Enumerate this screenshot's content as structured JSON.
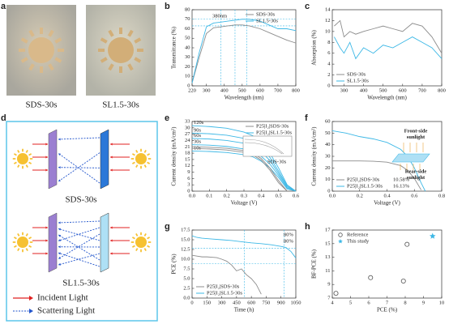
{
  "photos": {
    "panel": "a",
    "labels": [
      "SDS-30s",
      "SL1.5-30s"
    ]
  },
  "diagram": {
    "panel": "d",
    "labels": [
      "SDS-30s",
      "SL1.5-30s"
    ],
    "legend": [
      "Incident Light",
      "Scattering Light"
    ]
  },
  "chart_data": [
    {
      "type": "line",
      "panel": "b",
      "xlabel": "Wavelength (nm)",
      "ylabel": "Transmittance (%)",
      "xlim": [
        220,
        800
      ],
      "xticks": [
        220,
        300,
        400,
        500,
        600,
        700,
        800
      ],
      "ylim": [
        0,
        80
      ],
      "yticks": [
        0,
        10,
        20,
        30,
        40,
        50,
        60,
        70,
        80
      ],
      "legend": "upper right",
      "annotations": [
        "380nm"
      ],
      "vlines": [
        380,
        460,
        525
      ],
      "hlines": [
        63,
        70
      ],
      "ref_color": "#3db8e6",
      "series": [
        {
          "name": "SDS-30s",
          "color": "#8c8c8c",
          "x": [
            220,
            260,
            300,
            340,
            380,
            420,
            460,
            500,
            540,
            600,
            650,
            700,
            750,
            800
          ],
          "values": [
            3,
            30,
            55,
            61,
            62,
            63,
            64,
            64,
            63,
            60,
            56,
            52,
            48,
            45
          ]
        },
        {
          "name": "SL1.5-30s",
          "color": "#3db8e6",
          "x": [
            220,
            260,
            300,
            340,
            380,
            420,
            460,
            500,
            540,
            600,
            650,
            700,
            750,
            800
          ],
          "values": [
            3,
            35,
            62,
            66,
            67,
            68,
            69,
            70,
            70,
            68,
            64,
            60,
            60,
            58
          ]
        }
      ]
    },
    {
      "type": "line",
      "panel": "c",
      "xlabel": "Wavelength (nm)",
      "ylabel": "Absorption (%)",
      "xlim": [
        240,
        800
      ],
      "xticks": [
        300,
        400,
        500,
        600,
        700,
        800
      ],
      "ylim": [
        0,
        14
      ],
      "yticks": [
        0,
        2,
        4,
        6,
        8,
        10,
        12,
        14
      ],
      "legend": "lower left",
      "series": [
        {
          "name": "SDS-30s",
          "color": "#8c8c8c",
          "x": [
            250,
            280,
            300,
            330,
            360,
            400,
            450,
            500,
            550,
            600,
            650,
            700,
            750,
            800
          ],
          "values": [
            11,
            12,
            9,
            10,
            9.5,
            10,
            10.5,
            11,
            10.5,
            10,
            11.5,
            11,
            9,
            6
          ]
        },
        {
          "name": "SL1.5-30s",
          "color": "#3db8e6",
          "x": [
            250,
            280,
            300,
            330,
            360,
            400,
            450,
            500,
            550,
            600,
            650,
            700,
            750,
            800
          ],
          "values": [
            9,
            7,
            6,
            8,
            5,
            7,
            6,
            7.5,
            7,
            8,
            9,
            8,
            7,
            5
          ]
        }
      ]
    },
    {
      "type": "line",
      "panel": "e",
      "xlabel": "Voltage (V)",
      "ylabel": "Current density (mA/cm²)",
      "xlim": [
        0,
        0.6
      ],
      "xticks": [
        {
          "value": 0,
          "label": "0.0"
        },
        0.1,
        0.2,
        0.3,
        0.4,
        0.5,
        0.6
      ],
      "ylim": [
        0,
        33
      ],
      "yticks": [
        0,
        3,
        6,
        9,
        12,
        15,
        18,
        21,
        24,
        27,
        30,
        33
      ],
      "legend": "upper right",
      "label_curves": true,
      "annotations": [
        "SDS-30s"
      ],
      "legend_entries": [
        {
          "label": "P25|I₂|SDS-30s",
          "color": "#8c8c8c"
        },
        {
          "label": "P25|I₂|SL1.5-30s",
          "color": "#3db8e6"
        }
      ],
      "x": [
        0,
        0.1,
        0.2,
        0.3,
        0.35,
        0.4,
        0.45,
        0.5,
        0.55,
        0.6
      ],
      "series": [
        {
          "name": "120s",
          "color": "#3db8e6",
          "values": [
            31,
            30.6,
            29.8,
            28,
            26.3,
            23,
            18,
            11,
            3,
            0
          ]
        },
        {
          "name": "90s",
          "color": "#3db8e6",
          "values": [
            27.5,
            27.2,
            26.5,
            25,
            23.5,
            20.5,
            16,
            9.5,
            2.5,
            0
          ]
        },
        {
          "name": "60s",
          "color": "#3db8e6",
          "values": [
            25,
            24.7,
            24,
            22.7,
            21.3,
            18.7,
            14.5,
            8.5,
            2,
            0
          ]
        },
        {
          "name": "30s",
          "color": "#3db8e6",
          "values": [
            22,
            21.8,
            21.2,
            20,
            18.8,
            16.5,
            12.8,
            7.5,
            1.5,
            0
          ]
        },
        {
          "name": "10s",
          "color": "#3db8e6",
          "values": [
            19,
            18.8,
            18.3,
            17.3,
            16.3,
            14.2,
            11,
            6.5,
            1,
            0
          ]
        },
        {
          "color": "#8c8c8c",
          "values": [
            21,
            20.8,
            20.3,
            19.2,
            18,
            15.5,
            11,
            5,
            0,
            null
          ]
        },
        {
          "color": "#8c8c8c",
          "values": [
            20.2,
            20,
            19.5,
            18.4,
            17.2,
            14.7,
            10,
            4,
            0,
            null
          ]
        }
      ]
    },
    {
      "type": "line",
      "panel": "f",
      "xlabel": "Voltage (V)",
      "ylabel": "Current density (mA/cm²)",
      "xlim": [
        0,
        0.8
      ],
      "xticks": [
        {
          "value": 0,
          "label": "0.0"
        },
        0.2,
        0.4,
        0.6,
        0.8
      ],
      "ylim": [
        0,
        60
      ],
      "yticks": [
        0,
        10,
        20,
        30,
        40,
        50,
        60
      ],
      "legend": "lower left",
      "legend_entries": [
        {
          "label": "P25|I₂|SDS-30s",
          "color": "#8c8c8c",
          "note": "10.58%"
        },
        {
          "label": "P25|I₂|SL1.5-30s",
          "color": "#3db8e6",
          "note": "16.13%"
        }
      ],
      "annotations": [
        [
          "Front-side",
          "sunlight"
        ],
        [
          "Rear-side",
          "sunlight"
        ]
      ],
      "annotation_color": "#e8a33c",
      "x": [
        0,
        0.1,
        0.2,
        0.3,
        0.4,
        0.5,
        0.55,
        0.6,
        0.65,
        0.68
      ],
      "series": [
        {
          "color": "#8c8c8c",
          "values": [
            26,
            26,
            26,
            25.8,
            25,
            22,
            18,
            11,
            1,
            null
          ]
        },
        {
          "color": "#3db8e6",
          "values": [
            52,
            50,
            47,
            45,
            42,
            36,
            30,
            20,
            7,
            0
          ]
        }
      ]
    },
    {
      "type": "line",
      "panel": "g",
      "xlabel": "Time (h)",
      "ylabel": "PCE (%)",
      "xlim": [
        0,
        1050
      ],
      "xticks": [
        0,
        150,
        300,
        450,
        600,
        750,
        900,
        1050
      ],
      "ylim": [
        0,
        17.5
      ],
      "yticks": [
        {
          "value": 0,
          "label": "0.0"
        },
        2.5,
        {
          "value": 5,
          "label": "5.0"
        },
        7.5,
        {
          "value": 10,
          "label": "10.0"
        },
        12.5,
        {
          "value": 15,
          "label": "15.0"
        },
        17.5
      ],
      "legend": "lower left",
      "annotations": [
        "80%",
        "80%"
      ],
      "vlines": [
        530,
        930
      ],
      "hlines": [
        12.8,
        8.8
      ],
      "ref_color": "#3db8e6",
      "legend_entries": [
        {
          "label": "P25|I₂|SDS-30s",
          "color": "#8c8c8c"
        },
        {
          "label": "P25|I₂|SL1.5-30s",
          "color": "#3db8e6"
        }
      ],
      "series": [
        {
          "color": "#3db8e6",
          "x": [
            0,
            50,
            100,
            150,
            200,
            300,
            400,
            500,
            600,
            700,
            800,
            900,
            950,
            1000,
            1050
          ],
          "values": [
            16,
            15.6,
            15.4,
            15.3,
            15.2,
            15,
            14.8,
            14.5,
            14.2,
            14,
            13.7,
            13.3,
            13,
            12,
            10.3
          ]
        },
        {
          "color": "#8c8c8c",
          "x": [
            0,
            50,
            100,
            150,
            200,
            250,
            300,
            350,
            400,
            450,
            500,
            550,
            600,
            650,
            700
          ],
          "values": [
            11,
            10.8,
            10.6,
            10.6,
            10.5,
            10.4,
            10,
            9.5,
            8.5,
            7,
            7.5,
            6,
            5,
            3.5,
            1
          ]
        }
      ]
    },
    {
      "type": "scatter",
      "panel": "h",
      "xlabel": "PCE (%)",
      "ylabel": "BF-PCE (%)",
      "xlim": [
        4,
        10
      ],
      "xticks": [
        4,
        5,
        6,
        7,
        8,
        9,
        10
      ],
      "ylim": [
        7,
        17
      ],
      "yticks": [
        7,
        9,
        11,
        13,
        15,
        17
      ],
      "legend": "upper left",
      "series": [
        {
          "name": "Reference",
          "color": "#555555",
          "marker": "circle-open",
          "x": [
            4.2,
            6.1,
            7.9,
            8.1
          ],
          "values": [
            7.7,
            10,
            9.5,
            14.9
          ]
        },
        {
          "name": "This study",
          "color": "#3db8e6",
          "marker": "star",
          "x": [
            9.5
          ],
          "values": [
            16.1
          ]
        }
      ]
    }
  ]
}
